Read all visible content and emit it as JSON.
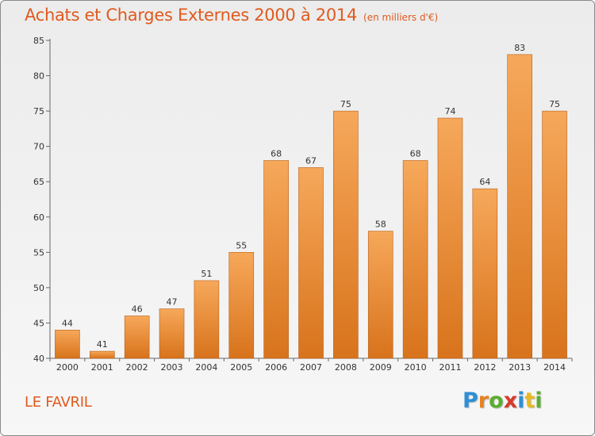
{
  "title": "Achats et Charges Externes 2000 à 2014",
  "subtitle": "(en milliers d'€)",
  "commune": "LE FAVRIL",
  "logo": {
    "text": "Proxiti",
    "letters": [
      {
        "ch": "P",
        "color": "#2e8fd6"
      },
      {
        "ch": "r",
        "color": "#e8821f"
      },
      {
        "ch": "o",
        "color": "#5aae2e"
      },
      {
        "ch": "x",
        "color": "#d83a2a"
      },
      {
        "ch": "i",
        "color": "#2e8fd6"
      },
      {
        "ch": "t",
        "color": "#e8b91f"
      },
      {
        "ch": "i",
        "color": "#5aae2e"
      }
    ]
  },
  "colors": {
    "accent": "#e05a1e",
    "bar_top": "#f6a85a",
    "bar_bottom": "#d8731c"
  },
  "chart_data": {
    "type": "bar",
    "title": "Achats et Charges Externes 2000 à 2014",
    "subtitle": "(en milliers d'€)",
    "categories": [
      "2000",
      "2001",
      "2002",
      "2003",
      "2004",
      "2005",
      "2006",
      "2007",
      "2008",
      "2009",
      "2010",
      "2011",
      "2012",
      "2013",
      "2014"
    ],
    "values": [
      44,
      41,
      46,
      47,
      51,
      55,
      68,
      67,
      75,
      58,
      68,
      74,
      64,
      83,
      75
    ],
    "xlabel": "",
    "ylabel": "",
    "ylim": [
      40,
      85
    ],
    "yticks": [
      40,
      45,
      50,
      55,
      60,
      65,
      70,
      75,
      80,
      85
    ],
    "grid": false,
    "legend": "none"
  }
}
